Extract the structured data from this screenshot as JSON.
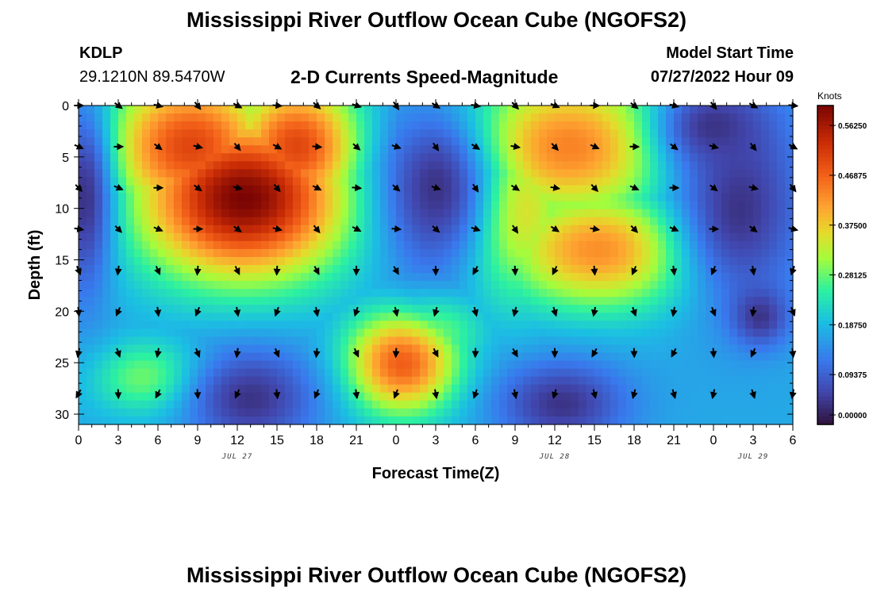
{
  "header": {
    "title": "Mississippi River Outflow Ocean Cube (NGOFS2)",
    "station_id": "KDLP",
    "station_coords": "29.1210N  89.5470W",
    "subtitle": "2-D Currents Speed-Magnitude",
    "model_start_label": "Model Start Time",
    "model_start_value": "07/27/2022 Hour 09",
    "bottom_title": "Mississippi River Outflow Ocean Cube (NGOFS2)"
  },
  "chart_data": {
    "type": "heatmap",
    "title": "2-D Currents Speed-Magnitude",
    "xlabel": "Forecast Time(Z)",
    "ylabel": "Depth (ft)",
    "x_hours_range": [
      0,
      54
    ],
    "x_tick_hours": [
      0,
      3,
      6,
      9,
      12,
      15,
      18,
      21,
      24,
      27,
      30,
      33,
      36,
      39,
      42,
      45,
      48,
      51,
      54
    ],
    "x_tick_labels": [
      "0",
      "3",
      "6",
      "9",
      "12",
      "15",
      "18",
      "21",
      "0",
      "3",
      "6",
      "9",
      "12",
      "15",
      "18",
      "21",
      "0",
      "3",
      "6"
    ],
    "date_labels": [
      {
        "hour": 12,
        "text": "JUL 27"
      },
      {
        "hour": 36,
        "text": "JUL 28"
      },
      {
        "hour": 51,
        "text": "JUL 29"
      }
    ],
    "y_range_ft": [
      0,
      31
    ],
    "y_ticks": [
      0,
      5,
      10,
      15,
      20,
      25,
      30
    ],
    "colorbar": {
      "label": "Knots",
      "min": 0.0,
      "max": 0.6,
      "ticks": [
        "0.56250",
        "0.46875",
        "0.37500",
        "0.28125",
        "0.18750",
        "0.09375",
        "0.00000"
      ],
      "tick_values": [
        0.5625,
        0.46875,
        0.375,
        0.28125,
        0.1875,
        0.09375,
        0.0
      ]
    },
    "speed_hotspots": [
      {
        "hour": 12.5,
        "depth": 9,
        "speed": 0.6,
        "sx": 5.5,
        "sy": 5.5
      },
      {
        "hour": 8.5,
        "depth": 4,
        "speed": 0.5,
        "sx": 4.5,
        "sy": 5
      },
      {
        "hour": 16.5,
        "depth": 4,
        "speed": 0.5,
        "sx": 3.5,
        "sy": 4.5
      },
      {
        "hour": 37,
        "depth": 4,
        "speed": 0.44,
        "sx": 6,
        "sy": 5
      },
      {
        "hour": 39.5,
        "depth": 14,
        "speed": 0.43,
        "sx": 5.5,
        "sy": 4
      },
      {
        "hour": 33,
        "depth": 10,
        "speed": 0.38,
        "sx": 3,
        "sy": 6
      },
      {
        "hour": 24.5,
        "depth": 25,
        "speed": 0.48,
        "sx": 3,
        "sy": 3.5
      },
      {
        "hour": 27,
        "depth": 22,
        "speed": 0.3,
        "sx": 2.5,
        "sy": 3
      },
      {
        "hour": 5.5,
        "depth": 26.5,
        "speed": 0.3,
        "sx": 3,
        "sy": 2.5
      }
    ],
    "slow_spots": [
      {
        "hour": 27,
        "depth": 8,
        "sx": 3,
        "sy": 6
      },
      {
        "hour": 50,
        "depth": 10,
        "sx": 3.5,
        "sy": 7
      },
      {
        "hour": 48,
        "depth": 2,
        "sx": 3,
        "sy": 3
      },
      {
        "hour": 51.5,
        "depth": 20.5,
        "sx": 1.5,
        "sy": 2
      },
      {
        "hour": 36.5,
        "depth": 29,
        "sx": 3.5,
        "sy": 3
      },
      {
        "hour": 13,
        "depth": 28.5,
        "sx": 3.5,
        "sy": 3.5
      },
      {
        "hour": 0.5,
        "depth": 9,
        "sx": 1.5,
        "sy": 7
      }
    ],
    "arrow_depths": [
      0,
      4,
      8,
      12,
      16,
      20,
      24,
      28
    ],
    "arrow_hours": [
      0,
      3,
      6,
      9,
      12,
      15,
      18,
      21,
      24,
      27,
      30,
      33,
      36,
      39,
      42,
      45,
      48,
      51,
      54
    ]
  }
}
